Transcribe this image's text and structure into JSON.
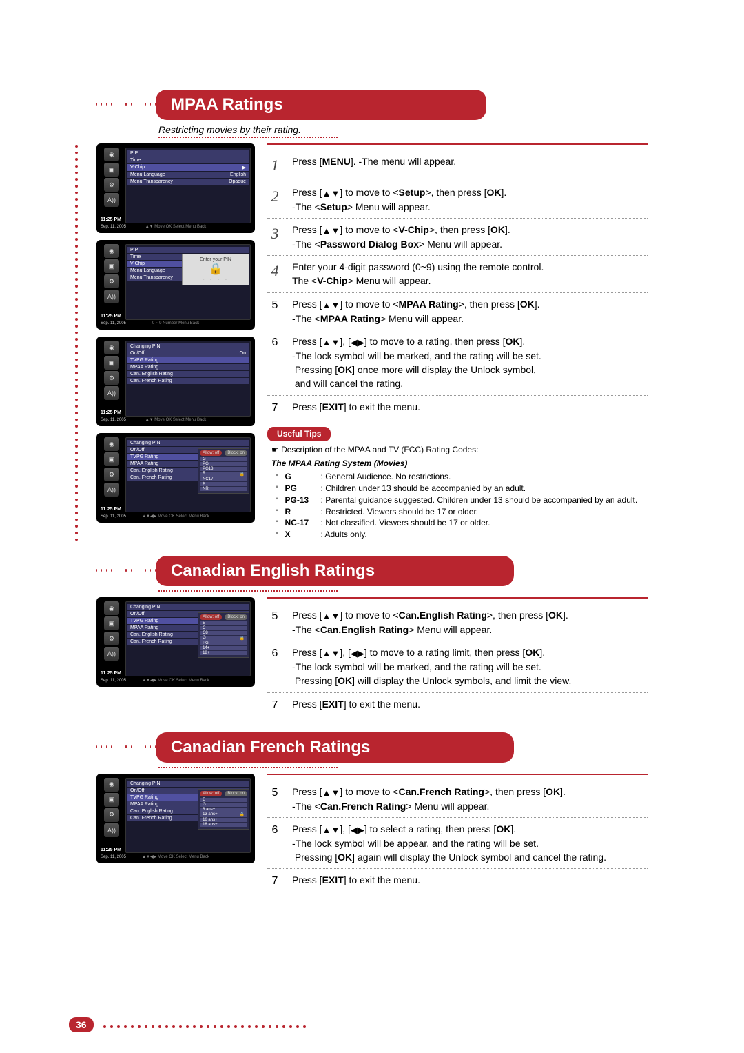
{
  "page_number": "36",
  "tv_time": "11:25 PM",
  "tv_date": "Sep. 11, 2005",
  "tv_footer": "▲▼ Move   OK  Select   Menu  Back",
  "tv_footer2": "0 ~ 9  Number   Menu  Back",
  "tv_footer3": "▲▼◀▶ Move   OK  Select   Menu  Back",
  "dialog_title": "Enter your PIN",
  "tab_allow": "Allow: off",
  "tab_block": "Block: on",
  "screens": {
    "setup": {
      "rows": [
        {
          "label": "PIP",
          "val": ""
        },
        {
          "label": "Time",
          "val": ""
        },
        {
          "label": "V-Chip",
          "val": "▶"
        },
        {
          "label": "Menu Language",
          "val": "English"
        },
        {
          "label": "Menu Transparency",
          "val": "Opaque"
        }
      ]
    },
    "vchip_pin": {
      "rows": [
        {
          "label": "PIP",
          "val": ""
        },
        {
          "label": "Time",
          "val": ""
        },
        {
          "label": "V-Chip",
          "val": ""
        },
        {
          "label": "Menu Language",
          "val": ""
        },
        {
          "label": "Menu Transparency",
          "val": ""
        }
      ]
    },
    "vchip_menu": {
      "rows": [
        {
          "label": "Changing PIN",
          "val": ""
        },
        {
          "label": "On/Off",
          "val": "On"
        },
        {
          "label": "TVPG Rating",
          "val": ""
        },
        {
          "label": "MPAA Rating",
          "val": ""
        },
        {
          "label": "Can. English Rating",
          "val": ""
        },
        {
          "label": "Can. French Rating",
          "val": ""
        }
      ]
    },
    "mpaa": {
      "rows": [
        {
          "label": "Changing PIN",
          "val": ""
        },
        {
          "label": "On/Off",
          "val": ""
        },
        {
          "label": "TVPG Rating",
          "val": ""
        },
        {
          "label": "MPAA Rating",
          "val": ""
        },
        {
          "label": "Can. English Rating",
          "val": ""
        },
        {
          "label": "Can. French Rating",
          "val": ""
        }
      ],
      "ratings": [
        "G",
        "PG",
        "PG13",
        "R",
        "NC17",
        "X",
        "NR"
      ]
    },
    "can_en": {
      "rows": [
        {
          "label": "Changing PIN",
          "val": ""
        },
        {
          "label": "On/Off",
          "val": ""
        },
        {
          "label": "TVPG Rating",
          "val": ""
        },
        {
          "label": "MPAA Rating",
          "val": ""
        },
        {
          "label": "Can. English Rating",
          "val": ""
        },
        {
          "label": "Can. French Rating",
          "val": ""
        }
      ],
      "ratings": [
        "E",
        "C",
        "C8+",
        "G",
        "PG",
        "14+",
        "18+"
      ]
    },
    "can_fr": {
      "rows": [
        {
          "label": "Changing PIN",
          "val": ""
        },
        {
          "label": "On/Off",
          "val": ""
        },
        {
          "label": "TVPG Rating",
          "val": ""
        },
        {
          "label": "MPAA Rating",
          "val": ""
        },
        {
          "label": "Can. English Rating",
          "val": ""
        },
        {
          "label": "Can. French Rating",
          "val": ""
        }
      ],
      "ratings": [
        "E",
        "G",
        "8 ans+",
        "13 ans+",
        "16 ans+",
        "18 ans+"
      ]
    }
  },
  "sections": {
    "mpaa": {
      "title": "MPAA Ratings",
      "subtitle": "Restricting movies by their rating.",
      "steps": [
        {
          "n": "1",
          "style": "fancy",
          "html": "Press [<b>MENU</b>]. -The menu will appear."
        },
        {
          "n": "2",
          "style": "fancy",
          "html": "Press [<span class='arrow'>▲▼</span>] to move to &lt;<b>Setup</b>&gt;, then press [<b>OK</b>].<br>-The &lt;<b>Setup</b>&gt; Menu will appear."
        },
        {
          "n": "3",
          "style": "fancy",
          "html": "Press [<span class='arrow'>▲▼</span>] to move to &lt;<b>V-Chip</b>&gt;, then press [<b>OK</b>].<br>-The &lt;<b>Password Dialog Box</b>&gt; Menu will appear."
        },
        {
          "n": "4",
          "style": "fancy",
          "html": "Enter your 4-digit password (0~9) using the remote control.<br>The &lt;<b>V-Chip</b>&gt; Menu will appear."
        },
        {
          "n": "5",
          "style": "plain",
          "html": "Press [<span class='arrow'>▲▼</span>] to move to &lt;<b>MPAA Rating</b>&gt;, then press [<b>OK</b>].<br>-The &lt;<b>MPAA Rating</b>&gt; Menu will appear."
        },
        {
          "n": "6",
          "style": "plain",
          "html": "Press [<span class='arrow'>▲▼</span>], [<span class='arrow'>◀▶</span>] to move to a rating, then press [<b>OK</b>].<br>-The lock symbol will be marked, and the rating will be set.<br>&nbsp;Pressing [<b>OK</b>] once more will display the Unlock symbol,<br>&nbsp;and will cancel the rating."
        },
        {
          "n": "7",
          "style": "plain",
          "html": "Press [<b>EXIT</b>] to exit the menu."
        }
      ],
      "tips_header": "Useful Tips",
      "tips_desc": "Description of the MPAA and TV (FCC) Rating Codes:",
      "tips_subtitle": "The MPAA Rating System (Movies)",
      "tips_items": [
        {
          "lbl": "G",
          "txt": ": General Audience. No restrictions."
        },
        {
          "lbl": "PG",
          "txt": ": Children under 13 should be accompanied by an adult."
        },
        {
          "lbl": "PG-13",
          "txt": ": Parental guidance suggested. Children under 13 should be accompanied by an adult."
        },
        {
          "lbl": "R",
          "txt": ": Restricted. Viewers should be 17 or older."
        },
        {
          "lbl": "NC-17",
          "txt": ": Not classified. Viewers should be 17 or older."
        },
        {
          "lbl": "X",
          "txt": ": Adults only."
        }
      ]
    },
    "can_en": {
      "title": "Canadian English Ratings",
      "steps": [
        {
          "n": "5",
          "style": "plain",
          "html": "Press [<span class='arrow'>▲▼</span>] to move to &lt;<b>Can.English Rating</b>&gt;, then press [<b>OK</b>].<br>-The &lt;<b>Can.English Rating</b>&gt; Menu will appear."
        },
        {
          "n": "6",
          "style": "plain",
          "html": "Press [<span class='arrow'>▲▼</span>], [<span class='arrow'>◀▶</span>] to move to a rating limit, then press [<b>OK</b>].<br>-The lock symbol will be marked, and the rating will be set.<br>&nbsp;Pressing [<b>OK</b>] will display the Unlock symbols, and limit the view."
        },
        {
          "n": "7",
          "style": "plain",
          "html": "Press [<b>EXIT</b>] to exit the menu."
        }
      ]
    },
    "can_fr": {
      "title": "Canadian French Ratings",
      "steps": [
        {
          "n": "5",
          "style": "plain",
          "html": "Press [<span class='arrow'>▲▼</span>] to move to &lt;<b>Can.French Rating</b>&gt;, then press [<b>OK</b>].<br>-The &lt;<b>Can.French Rating</b>&gt; Menu will appear."
        },
        {
          "n": "6",
          "style": "plain",
          "html": "Press [<span class='arrow'>▲▼</span>], [<span class='arrow'>◀▶</span>] to select a rating, then press [<b>OK</b>].<br>-The lock symbol will be appear, and the rating will be set.<br>&nbsp;Pressing [<b>OK</b>] again will display the Unlock symbol and cancel the rating."
        },
        {
          "n": "7",
          "style": "plain",
          "html": "Press [<b>EXIT</b>] to exit the menu."
        }
      ]
    }
  }
}
